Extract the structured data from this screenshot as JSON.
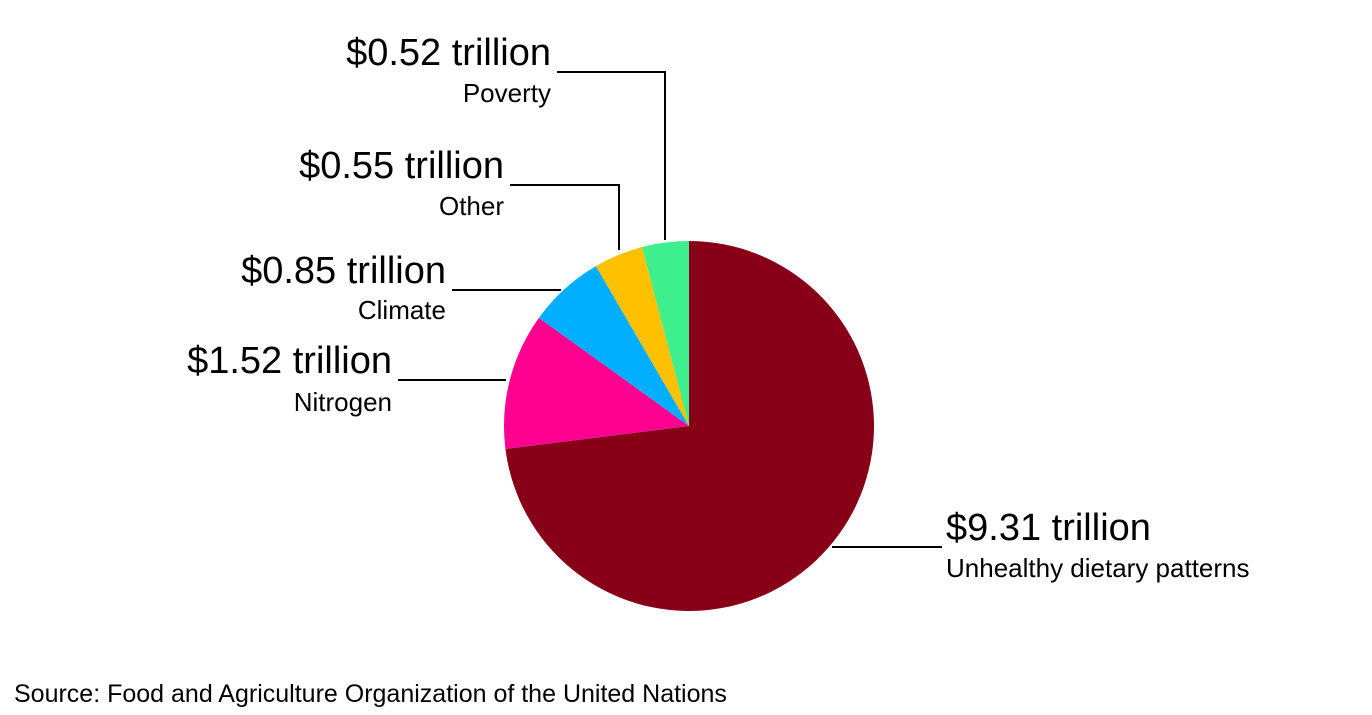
{
  "chart_data": {
    "type": "pie",
    "title": "",
    "unit": "trillion USD",
    "slices": [
      {
        "name": "Unhealthy dietary patterns",
        "value": 9.31,
        "value_label": "$9.31 trillion",
        "color": "#870018",
        "label_side": "right"
      },
      {
        "name": "Nitrogen",
        "value": 1.52,
        "value_label": "$1.52 trillion",
        "color": "#ff0090",
        "label_side": "left"
      },
      {
        "name": "Climate",
        "value": 0.85,
        "value_label": "$0.85 trillion",
        "color": "#00aeff",
        "label_side": "left"
      },
      {
        "name": "Other",
        "value": 0.55,
        "value_label": "$0.55 trillion",
        "color": "#ffc000",
        "label_side": "left"
      },
      {
        "name": "Poverty",
        "value": 0.52,
        "value_label": "$0.52 trillion",
        "color": "#3df08d",
        "label_side": "left"
      }
    ],
    "start": "12 o'clock",
    "direction": "clockwise",
    "legend": "none"
  },
  "source": "Source: Food and Agriculture Organization of the United Nations"
}
